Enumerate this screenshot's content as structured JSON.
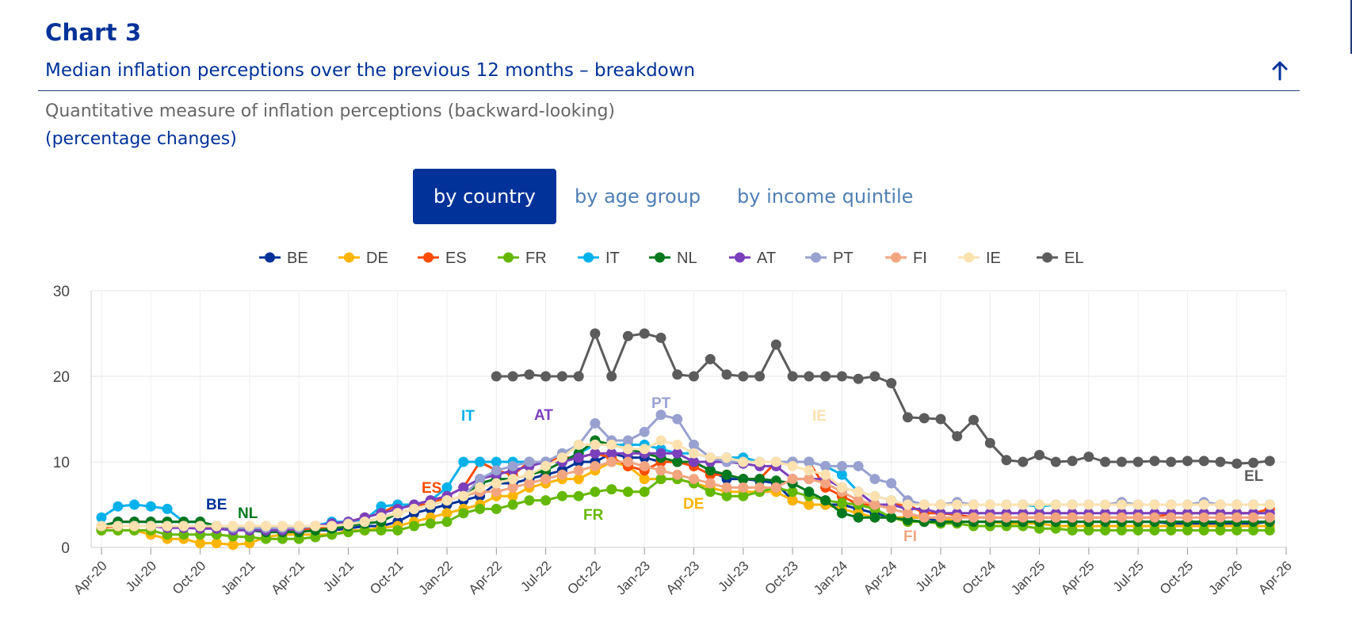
{
  "header": {
    "chart_label": "Chart 3",
    "subtitle": "Median inflation perceptions over the previous 12 months – breakdown",
    "description": "Quantitative measure of inflation perceptions (backward-looking)",
    "units": "(percentage changes)",
    "collapse_icon": "arrow-up-icon"
  },
  "tabs": [
    {
      "label": "by country",
      "active": true
    },
    {
      "label": "by age group",
      "active": false
    },
    {
      "label": "by income quintile",
      "active": false
    }
  ],
  "chart_data": {
    "type": "line",
    "ylim": [
      0,
      30
    ],
    "yticks": [
      0,
      10,
      20,
      30
    ],
    "xtick_labels": [
      "Apr-20",
      "Jul-20",
      "Oct-20",
      "Jan-21",
      "Apr-21",
      "Jul-21",
      "Oct-21",
      "Jan-22",
      "Apr-22",
      "Jul-22",
      "Oct-22",
      "Jan-23",
      "Apr-23",
      "Jul-23",
      "Oct-23",
      "Jan-24",
      "Apr-24",
      "Jul-24",
      "Oct-24",
      "Jan-25",
      "Apr-25",
      "Jul-25",
      "Oct-25",
      "Jan-26",
      "Apr-26"
    ],
    "x_start": "Apr-20",
    "grid": true,
    "legend_position": "top-center",
    "series": [
      {
        "name": "BE",
        "color": "#003299",
        "label": "BE",
        "values": [
          2.5,
          3,
          3,
          3,
          3,
          3,
          3,
          2.5,
          2.2,
          2.2,
          2,
          2,
          2,
          2,
          2,
          2.2,
          2.5,
          2.5,
          3,
          4,
          4.5,
          5,
          5.5,
          6,
          7.5,
          7.5,
          8,
          8.5,
          9,
          10,
          10,
          11,
          10.5,
          10.5,
          10,
          10,
          10,
          9,
          8,
          8,
          7.8,
          7.5,
          5.5,
          5,
          5,
          5,
          4.5,
          4,
          3.5,
          3.5,
          3.5,
          3,
          3,
          3,
          3,
          3,
          3,
          3,
          3,
          3,
          3,
          3,
          3,
          3,
          3,
          2.8,
          2.8,
          2.8,
          2.8,
          2.8,
          2.8,
          3
        ]
      },
      {
        "name": "DE",
        "color": "#ffb400",
        "label": "DE",
        "values": [
          2,
          2,
          2,
          1.5,
          1,
          1,
          0.5,
          0.5,
          0.3,
          0.5,
          1.2,
          1.5,
          1.5,
          1.5,
          1.5,
          2,
          2,
          2.3,
          2.5,
          3,
          3.5,
          4,
          4.5,
          5,
          6,
          6,
          7,
          7.5,
          8,
          8,
          9,
          10,
          9.5,
          8,
          8,
          8,
          7.5,
          7,
          6.5,
          6.5,
          6.5,
          6.5,
          5.5,
          5,
          5,
          4.5,
          4,
          3.5,
          3.5,
          3.5,
          3.5,
          3.5,
          3,
          3,
          3,
          2.8,
          2.8,
          2.8,
          2.5,
          2.5,
          2.5,
          2.5,
          2.5,
          2.5,
          2.5,
          2.5,
          2.5,
          2.5,
          2.5,
          2.5,
          2.5,
          2.5
        ]
      },
      {
        "name": "ES",
        "color": "#ff4b00",
        "label": "ES",
        "values": [
          2.3,
          2.5,
          2.5,
          2.5,
          2.5,
          2.5,
          2.5,
          2.3,
          2.2,
          2,
          2,
          2,
          2,
          2.2,
          2.5,
          3,
          3.5,
          4,
          5,
          5,
          5,
          6,
          7,
          10,
          9,
          8.5,
          10,
          10,
          10.5,
          10.5,
          11,
          10.5,
          9.5,
          9,
          10,
          10,
          9.5,
          8.5,
          8.5,
          8,
          8,
          10,
          10,
          10,
          7,
          6,
          5,
          5,
          5,
          5,
          4,
          4,
          3.8,
          3.5,
          3.5,
          3.5,
          3.5,
          3.5,
          3.5,
          3.5,
          3.5,
          3.5,
          3.5,
          3.5,
          3.5,
          4,
          4,
          4,
          4,
          4,
          4,
          4.5
        ]
      },
      {
        "name": "FR",
        "color": "#65b800",
        "label": "FR",
        "values": [
          2,
          2,
          2,
          2,
          1.5,
          1.5,
          1.5,
          1.5,
          1.3,
          1.2,
          1,
          1,
          1,
          1.2,
          1.5,
          1.8,
          2,
          2,
          2,
          2.5,
          2.8,
          3,
          4,
          4.5,
          4.5,
          5,
          5.5,
          5.5,
          6,
          6,
          6.5,
          6.8,
          6.5,
          6.5,
          8,
          8,
          7.5,
          6.5,
          6,
          6,
          6.5,
          7,
          6.5,
          6,
          5.5,
          5.2,
          5,
          4.5,
          3.5,
          3,
          3,
          2.8,
          2.8,
          2.5,
          2.5,
          2.5,
          2.5,
          2.2,
          2.2,
          2,
          2,
          2,
          2,
          2,
          2,
          2,
          2,
          2,
          2,
          2,
          2,
          2
        ]
      },
      {
        "name": "IT",
        "color": "#00b1ea",
        "label": "IT",
        "values": [
          3.5,
          4.8,
          5,
          4.8,
          4.5,
          3,
          3,
          2.5,
          2.3,
          2.2,
          2,
          2,
          2.2,
          2.5,
          3,
          3,
          3.2,
          4.8,
          5,
          5,
          5.5,
          7,
          10,
          10,
          10,
          10,
          10,
          10,
          10,
          11,
          12,
          12,
          12,
          12,
          11.5,
          11,
          11,
          10.5,
          10.5,
          10.5,
          10,
          10,
          10,
          10,
          9.5,
          8.5,
          6.5,
          6,
          5.5,
          5,
          5,
          5,
          5,
          5,
          5,
          5,
          5,
          4.8,
          5,
          5,
          5,
          5,
          5,
          5,
          5,
          5,
          5,
          5,
          5,
          5,
          5,
          5
        ]
      },
      {
        "name": "NL",
        "color": "#00781e",
        "label": "NL",
        "values": [
          2.5,
          3,
          3,
          3,
          3,
          3,
          3,
          2.5,
          2.2,
          2,
          1.8,
          1.8,
          1.8,
          2,
          2.2,
          2.5,
          2.8,
          3,
          4,
          4.5,
          5,
          5.5,
          6,
          7.5,
          8,
          8,
          8.5,
          9,
          10,
          11,
          12.5,
          12,
          11.5,
          11,
          10.5,
          10,
          10,
          9,
          8.5,
          8,
          8,
          7.8,
          7.5,
          6.5,
          5.5,
          4,
          3.5,
          3.5,
          3.5,
          3.2,
          3,
          3,
          3,
          3,
          3,
          3,
          3,
          3,
          3,
          3,
          3,
          3,
          3,
          3,
          3,
          3,
          3,
          3,
          3,
          3,
          3,
          3
        ]
      },
      {
        "name": "AT",
        "color": "#7c3fbc",
        "label": "AT",
        "values": [
          2.5,
          2.5,
          2.5,
          2.5,
          2.3,
          2.3,
          2.2,
          2.2,
          2,
          2,
          2,
          2,
          2.2,
          2.5,
          2.8,
          3,
          3.5,
          4,
          4.5,
          5,
          5.5,
          6,
          7,
          8,
          8.5,
          9,
          9.5,
          10,
          10,
          10.5,
          11,
          11,
          11,
          11,
          11,
          11,
          10,
          10,
          10,
          9.8,
          9.5,
          9.5,
          8,
          8,
          8,
          7,
          6.5,
          5,
          5,
          4.5,
          4.5,
          4,
          4,
          4,
          4,
          4,
          4,
          4,
          4,
          4,
          4,
          4,
          4,
          4,
          4,
          4,
          4,
          4,
          4,
          4,
          4,
          4
        ]
      },
      {
        "name": "PT",
        "color": "#98a1d0",
        "label": "PT",
        "values": [
          2.5,
          2.5,
          2.5,
          2.5,
          2.5,
          2.5,
          2.5,
          2.5,
          2.3,
          2.3,
          2.3,
          2.3,
          2.3,
          2.5,
          2.5,
          2.8,
          3,
          3.5,
          4,
          4.5,
          5,
          5.5,
          6,
          8,
          9,
          9.5,
          10,
          10,
          11,
          12,
          14.5,
          12.5,
          12.5,
          13.5,
          15.5,
          15,
          12,
          10.5,
          10,
          10,
          10,
          10,
          10,
          10,
          9.5,
          9.5,
          9.5,
          8,
          7.5,
          5.5,
          5,
          5,
          5.3,
          5,
          5,
          5,
          5,
          5,
          5,
          5,
          5,
          5,
          5.3,
          5,
          5,
          5,
          5,
          5.3,
          5,
          5,
          5,
          5
        ]
      },
      {
        "name": "FI",
        "color": "#f3a580",
        "label": "FI",
        "values": [
          2.5,
          2.5,
          2.5,
          2.5,
          2.5,
          2.5,
          2.5,
          2.5,
          2.5,
          2.5,
          2.5,
          2.5,
          2.5,
          2.5,
          2.5,
          2.7,
          3,
          3.5,
          4,
          4.5,
          5,
          5.5,
          6,
          6.5,
          6.5,
          7,
          7.5,
          8,
          8.5,
          9,
          9.5,
          10,
          10,
          9.5,
          9,
          8.5,
          8,
          7.5,
          7,
          7,
          7,
          7,
          8,
          8,
          7.5,
          6.5,
          5.5,
          5,
          4.5,
          4,
          3.5,
          3.5,
          3.5,
          3.5,
          3.5,
          3.5,
          3.5,
          3.5,
          3.5,
          3.5,
          3.5,
          3.5,
          3.5,
          3.5,
          3.5,
          3.5,
          3.5,
          3.5,
          3.5,
          3.5,
          3.5,
          3.5
        ]
      },
      {
        "name": "IE",
        "color": "#fde2b0",
        "label": "IE",
        "values": [
          2.5,
          2.5,
          2.5,
          2.5,
          2.5,
          2.5,
          2.5,
          2.5,
          2.5,
          2.5,
          2.5,
          2.5,
          2.5,
          2.5,
          2.5,
          2.7,
          3,
          3.5,
          4,
          4.5,
          5,
          5.5,
          6,
          7,
          7.5,
          8,
          8.5,
          9.5,
          10.5,
          12,
          12,
          12,
          11.5,
          11.5,
          12.5,
          12,
          11,
          10.5,
          10.5,
          10,
          10,
          10,
          9.5,
          9,
          8.5,
          7,
          6.5,
          6,
          5.5,
          5,
          5,
          5,
          5,
          5,
          5,
          5,
          5,
          5,
          5,
          5,
          5,
          5,
          5,
          5,
          5,
          5,
          5,
          5,
          5,
          5,
          5,
          5
        ]
      },
      {
        "name": "EL",
        "color": "#5c5c5c",
        "label": "EL",
        "values": [
          null,
          null,
          null,
          null,
          null,
          null,
          null,
          null,
          null,
          null,
          null,
          null,
          null,
          null,
          null,
          null,
          null,
          null,
          null,
          null,
          null,
          null,
          null,
          null,
          20,
          20,
          20.2,
          20,
          20,
          20,
          25,
          20,
          24.7,
          25,
          24.5,
          20.2,
          20,
          22,
          20.2,
          20,
          20,
          23.7,
          20,
          20,
          20,
          20,
          19.7,
          20,
          19.2,
          15.2,
          15.1,
          15,
          13,
          14.9,
          12.2,
          10.2,
          10,
          10.8,
          10,
          10.1,
          10.6,
          10,
          10,
          10,
          10.1,
          10,
          10.1,
          10.1,
          10,
          9.8,
          9.9,
          10.1
        ]
      }
    ]
  }
}
